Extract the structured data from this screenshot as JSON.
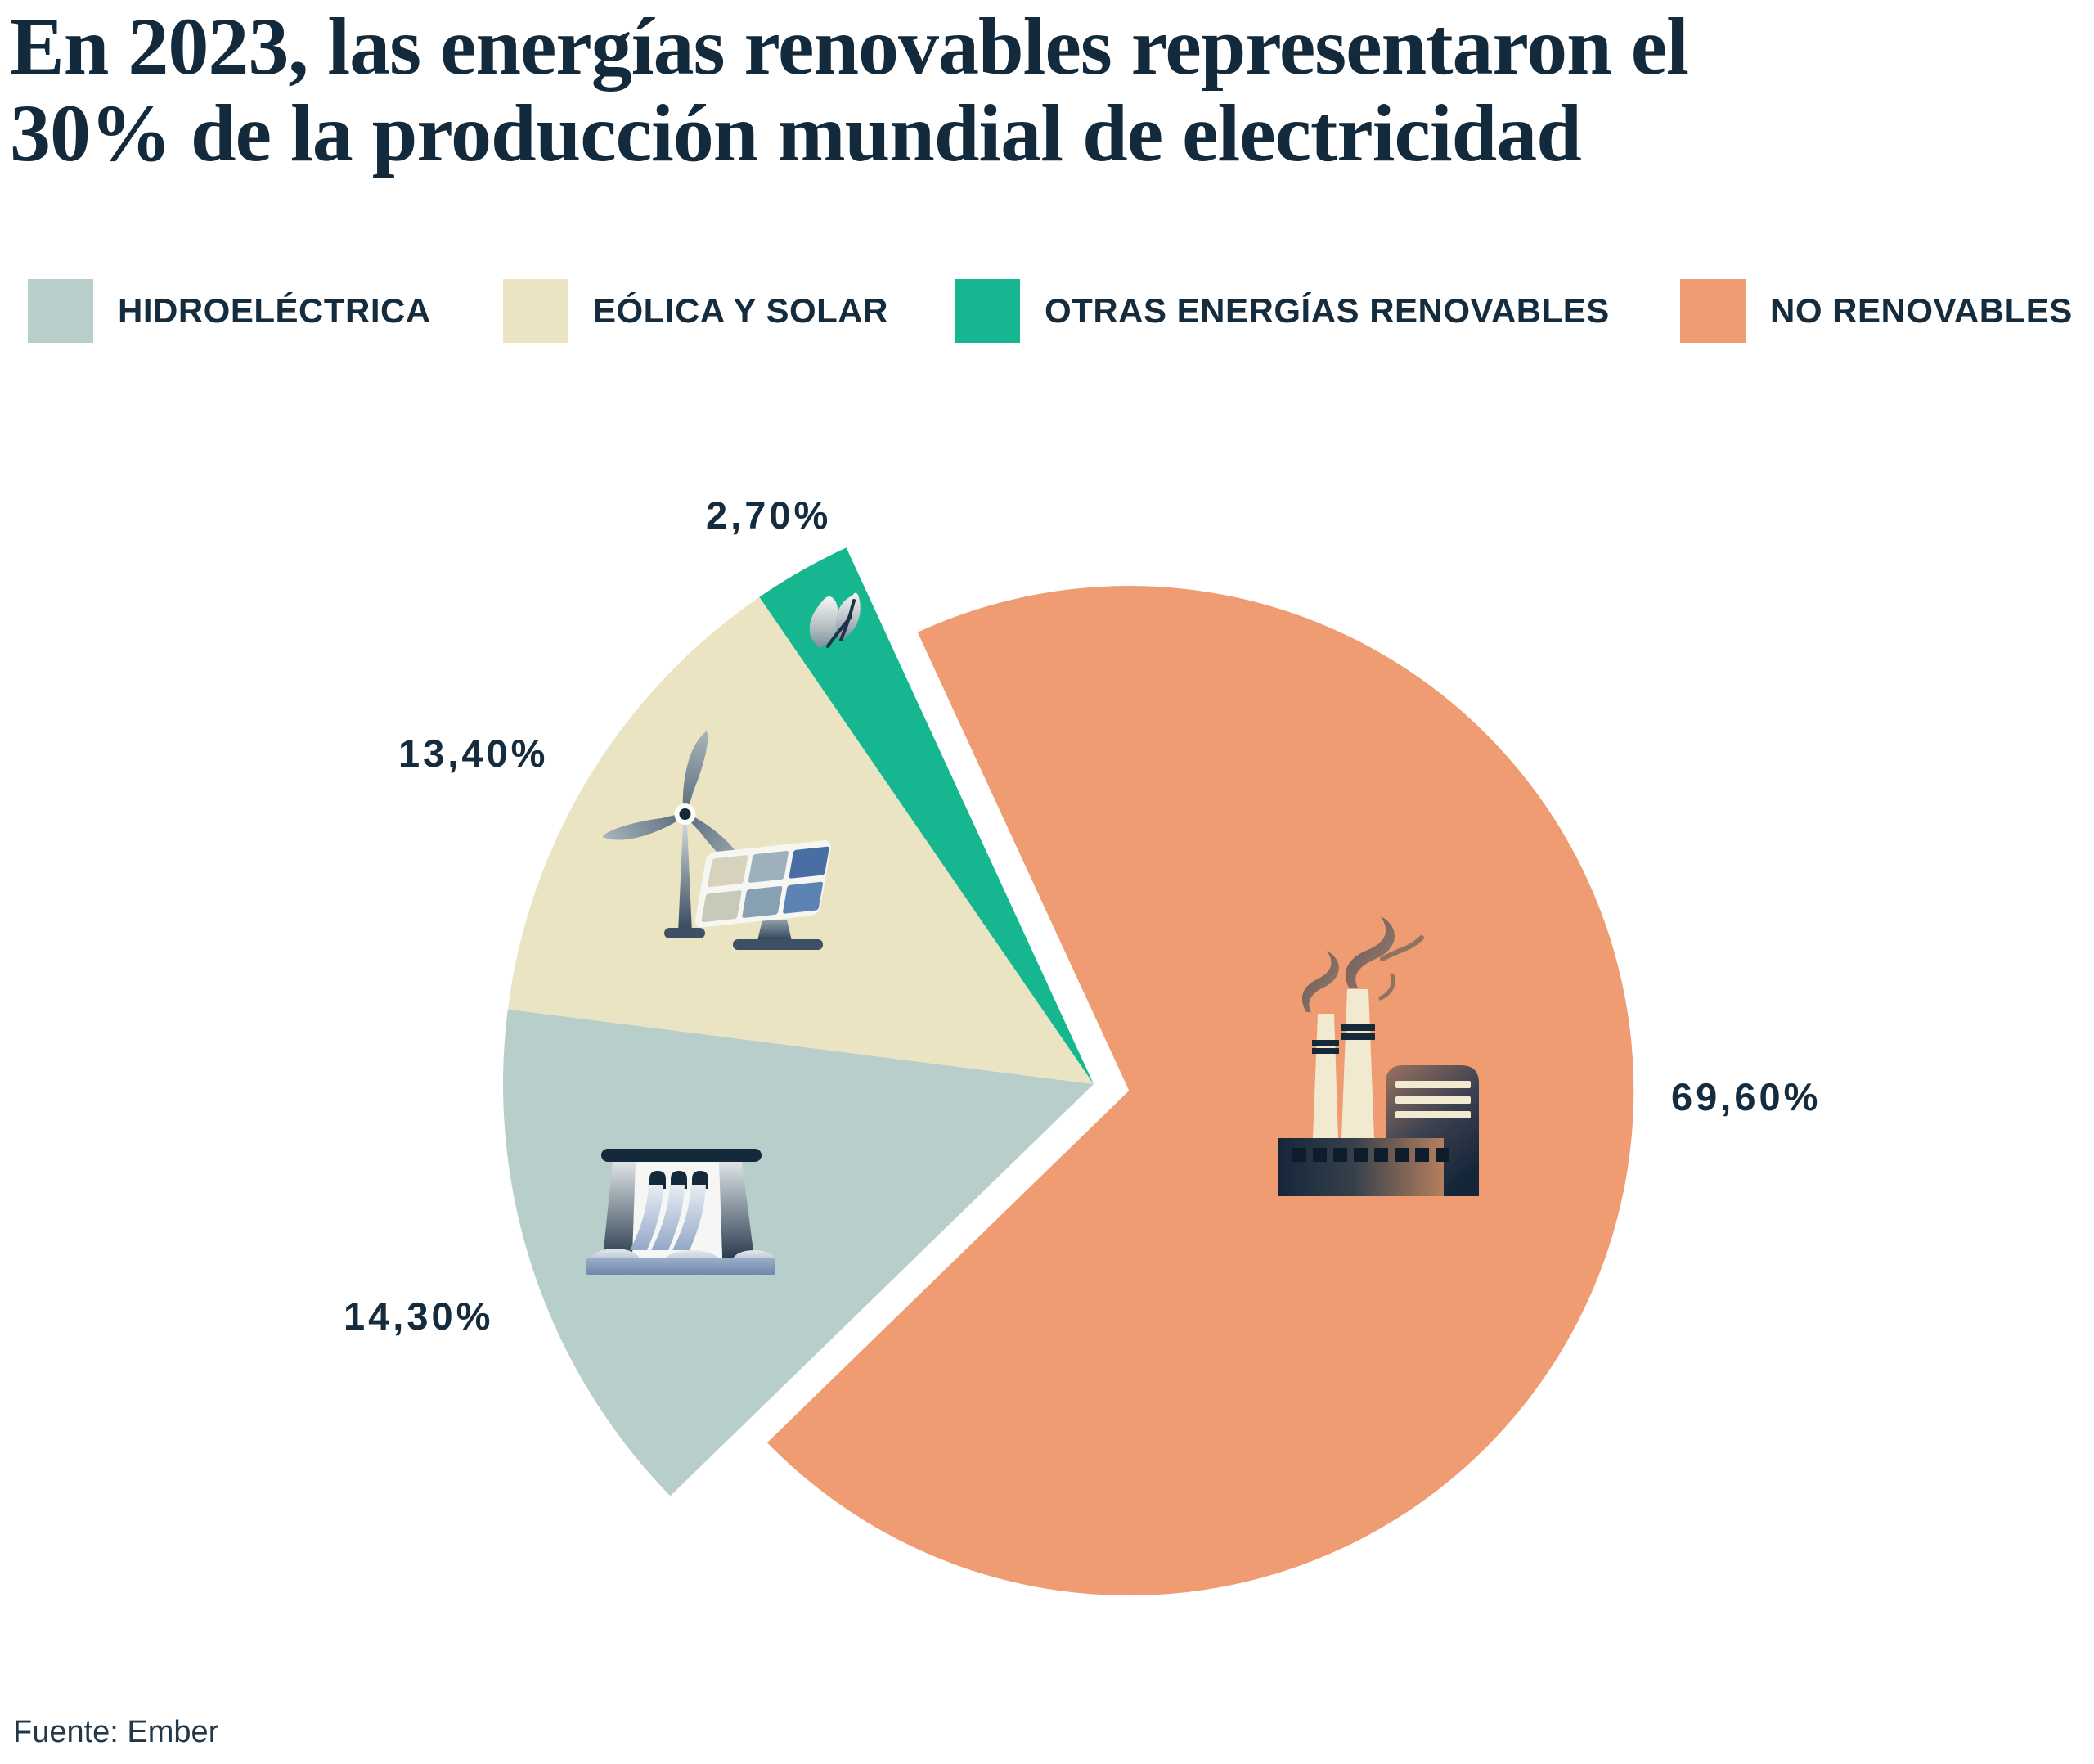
{
  "page": {
    "title_line1": "En 2023, las energías renovables representaron el",
    "title_line2": "30% de la producción mundial de electricidad",
    "source": "Fuente: Ember"
  },
  "colors": {
    "text_navy": "#142c3e",
    "hydro": "#b8cecb",
    "wind_solar": "#ebe4c3",
    "other_renewables": "#15b690",
    "non_renewables": "#f09c72",
    "background": "#ffffff"
  },
  "legend": {
    "items": [
      {
        "label": "HIDROELÉCTRICA",
        "color": "#b8cecb"
      },
      {
        "label": "EÓLICA Y SOLAR",
        "color": "#ebe4c3"
      },
      {
        "label": "OTRAS ENERGÍAS RENOVABLES",
        "color": "#15b690"
      },
      {
        "label": "NO RENOVABLES",
        "color": "#f09c72"
      }
    ]
  },
  "chart_data": {
    "type": "pie",
    "title": "En 2023, las energías renovables representaron el 30% de la producción mundial de electricidad",
    "legend_position": "top",
    "start_angle_deg": 135.8,
    "slices": [
      {
        "name": "Hidroeléctrica",
        "value": 14.3,
        "label": "14,30%",
        "color": "#b8cecb",
        "icon": "dam"
      },
      {
        "name": "Eólica y solar",
        "value": 13.4,
        "label": "13,40%",
        "color": "#ebe4c3",
        "icon": "wind-turbine-solar-panel"
      },
      {
        "name": "Otras energías renovables",
        "value": 2.7,
        "label": "2,70%",
        "color": "#15b690",
        "icon": "leaf"
      },
      {
        "name": "No renovables",
        "value": 69.6,
        "label": "69,60%",
        "color": "#f09c72",
        "icon": "factory"
      }
    ],
    "source": "Fuente: Ember"
  }
}
